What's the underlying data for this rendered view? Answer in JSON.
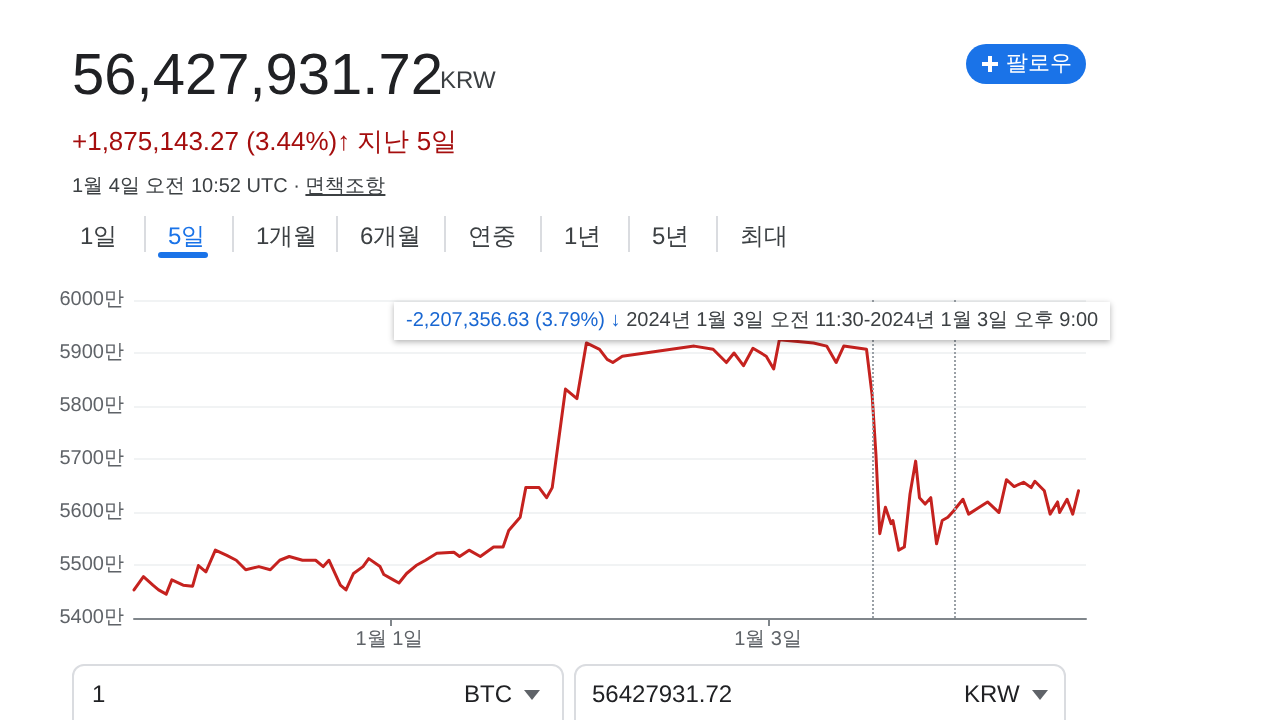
{
  "chart_data": {
    "type": "line",
    "title": "56,427,931.72",
    "subtitle": "+1,875,143.27 (3.44%)↑ 지난 5일",
    "annotations": [
      "KRW",
      "1월 4일 오전 10:52 UTC ·",
      "면책조항",
      "1일",
      "5일",
      "1개월",
      "6개월",
      "연중",
      "1년",
      "5년",
      "최대",
      "팔로우",
      "-2,207,356.63 (3.79%) ↓",
      "2024년 1월 3일 오전 11:30-2024년 1월 3일 오후 9:00",
      "1",
      "BTC",
      "56427931.72",
      "KRW"
    ],
    "x": [
      "2023-12-30T15:36",
      "2023-12-30T16:48",
      "2023-12-30T18:00",
      "2023-12-30T18:43",
      "2023-12-30T19:41",
      "2023-12-30T20:24",
      "2023-12-30T21:50",
      "2023-12-30T23:02",
      "2023-12-30T23:46",
      "2023-12-31T00:43",
      "2023-12-31T01:55",
      "2023-12-31T03:22",
      "2023-12-31T04:34",
      "2023-12-31T05:46",
      "2023-12-31T07:26",
      "2023-12-31T08:53",
      "2023-12-31T10:05",
      "2023-12-31T11:17",
      "2023-12-31T12:58",
      "2023-12-31T14:38",
      "2023-12-31T15:36",
      "2023-12-31T16:19",
      "2023-12-31T17:46",
      "2023-12-31T18:29",
      "2023-12-31T19:26",
      "2023-12-31T20:38",
      "2023-12-31T21:22",
      "2023-12-31T22:48",
      "2023-12-31T23:17",
      "2024-01-01T00:29",
      "2024-01-01T01:12",
      "2024-01-01T02:10",
      "2024-01-01T03:22",
      "2024-01-01T04:34",
      "2024-01-01T06:00",
      "2024-01-01T08:10",
      "2024-01-01T08:53",
      "2024-01-01T10:05",
      "2024-01-01T11:31",
      "2024-01-01T13:12",
      "2024-01-01T14:24",
      "2024-01-01T15:07",
      "2024-01-01T16:34",
      "2024-01-01T17:17",
      "2024-01-01T18:58",
      "2024-01-01T19:55",
      "2024-01-01T20:38",
      "2024-01-01T22:19",
      "2024-01-01T23:46",
      "2024-01-02T00:58",
      "2024-01-02T02:38",
      "2024-01-02T03:36",
      "2024-01-02T04:19",
      "2024-01-02T05:31",
      "2024-01-02T14:38",
      "2024-01-02T17:02",
      "2024-01-02T18:43",
      "2024-01-02T19:41",
      "2024-01-02T20:53",
      "2024-01-02T22:05",
      "2024-01-02T23:46",
      "2024-01-03T00:43",
      "2024-01-03T01:26",
      "2024-01-03T05:46",
      "2024-01-03T07:26",
      "2024-01-03T08:38",
      "2024-01-03T09:36",
      "2024-01-03T12:29",
      "2024-01-03T13:12",
      "2024-01-03T13:41",
      "2024-01-03T14:10",
      "2024-01-03T14:53",
      "2024-01-03T15:36",
      "2024-01-03T15:50",
      "2024-01-03T16:34",
      "2024-01-03T17:17",
      "2024-01-03T18:00",
      "2024-01-03T18:43",
      "2024-01-03T19:12",
      "2024-01-03T19:55",
      "2024-01-03T20:38",
      "2024-01-03T21:22",
      "2024-01-03T22:05",
      "2024-01-03T22:48",
      "2024-01-03T23:31",
      "2024-01-04T00:43",
      "2024-01-04T01:26",
      "2024-01-04T03:50",
      "2024-01-04T05:17",
      "2024-01-04T06:14",
      "2024-01-04T07:12",
      "2024-01-04T08:24",
      "2024-01-04T09:22",
      "2024-01-04T09:50",
      "2024-01-04T11:02",
      "2024-01-04T11:46",
      "2024-01-04T12:43",
      "2024-01-04T12:58",
      "2024-01-04T13:55",
      "2024-01-04T14:38",
      "2024-01-04T15:22"
    ],
    "series": [
      {
        "color": "#c5221f",
        "values": [
          5453,
          5478,
          5462,
          5453,
          5445,
          5472,
          5462,
          5460,
          5499,
          5487,
          5528,
          5518,
          5509,
          5491,
          5497,
          5491,
          5509,
          5516,
          5509,
          5509,
          5497,
          5509,
          5462,
          5453,
          5484,
          5497,
          5512,
          5497,
          5482,
          5472,
          5466,
          5484,
          5499,
          5509,
          5522,
          5524,
          5516,
          5528,
          5516,
          5534,
          5534,
          5565,
          5590,
          5646,
          5646,
          5627,
          5646,
          5832,
          5814,
          5919,
          5907,
          5888,
          5882,
          5894,
          5913,
          5907,
          5882,
          5900,
          5876,
          5909,
          5894,
          5870,
          5925,
          5919,
          5913,
          5882,
          5913,
          5907,
          5820,
          5708,
          5559,
          5609,
          5578,
          5584,
          5528,
          5534,
          5634,
          5696,
          5627,
          5615,
          5627,
          5540,
          5584,
          5590,
          5602,
          5624,
          5596,
          5619,
          5599,
          5661,
          5648,
          5656,
          5646,
          5658,
          5640,
          5596,
          5619,
          5599,
          5624,
          5596,
          5640
        ]
      }
    ],
    "xlim": [
      "2023-12-30T15:36",
      "2024-01-04T16:19"
    ],
    "xticks": [
      {
        "value": "2024-01-01",
        "label": "1월 1일"
      },
      {
        "value": "2024-01-03",
        "label": "1월 3일"
      }
    ],
    "ylim": [
      5400,
      6000
    ],
    "yticks": [
      {
        "value": 5400,
        "label": "5400만"
      },
      {
        "value": 5500,
        "label": "5500만"
      },
      {
        "value": 5600,
        "label": "5600만"
      },
      {
        "value": 5700,
        "label": "5700만"
      },
      {
        "value": 5800,
        "label": "5800만"
      },
      {
        "value": 5900,
        "label": "5900만"
      },
      {
        "value": 6000,
        "label": "6000만"
      }
    ],
    "ref_lines": [
      {
        "axis": "x",
        "value": "2024-01-03T13:12",
        "color": "#9aa0a6",
        "line_style": "dotted"
      },
      {
        "axis": "x",
        "value": "2024-01-03T23:31",
        "color": "#9aa0a6",
        "line_style": "dotted"
      }
    ],
    "grid": "y",
    "marker": "none",
    "line_style": "solid"
  }
}
